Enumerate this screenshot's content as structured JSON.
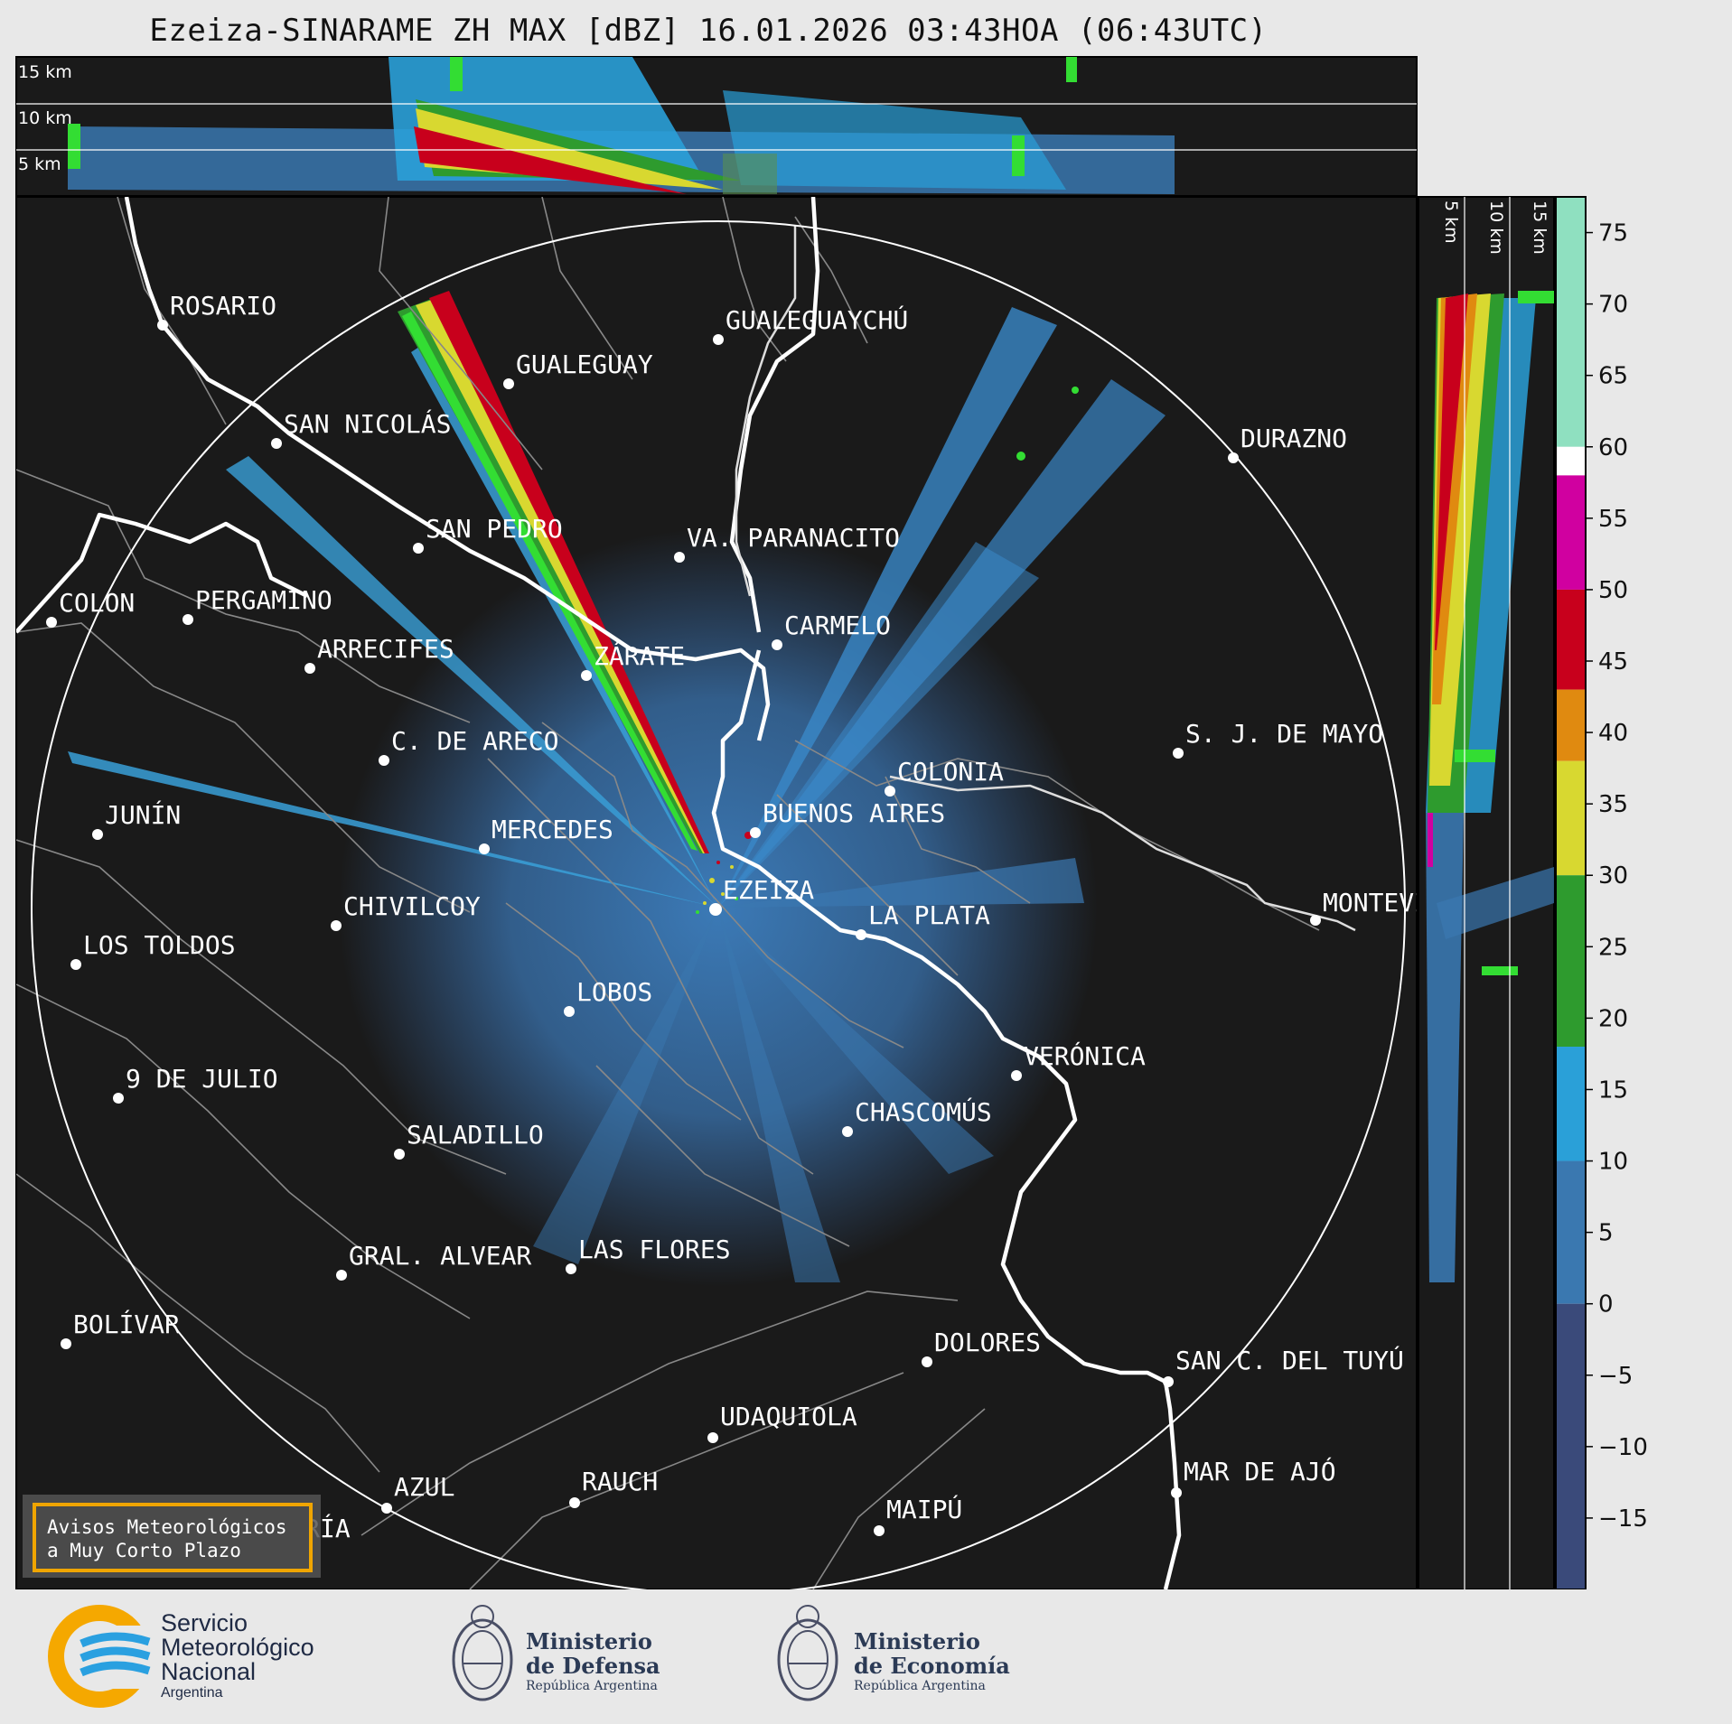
{
  "title": "Ezeiza-SINARAME ZH MAX [dBZ] 16.01.2026 03:43HOA (06:43UTC)",
  "top_panel": {
    "height_labels": [
      "15 km",
      "10 km",
      "5 km"
    ]
  },
  "side_panel": {
    "height_labels": [
      "5 km",
      "10 km",
      "15 km"
    ]
  },
  "colorbar": {
    "ticks": [
      "75",
      "70",
      "65",
      "60",
      "55",
      "50",
      "45",
      "40",
      "35",
      "30",
      "25",
      "20",
      "15",
      "10",
      "5",
      "0",
      "−5",
      "−10",
      "−15"
    ],
    "unit": "dBZ",
    "range": [
      -20,
      77.5
    ],
    "stops": [
      {
        "from": 60,
        "to": 77.5,
        "color": "#8fe0c0"
      },
      {
        "from": 58,
        "to": 60,
        "color": "#ffffff"
      },
      {
        "from": 50,
        "to": 58,
        "color": "#d000a0"
      },
      {
        "from": 43,
        "to": 50,
        "color": "#c8001c"
      },
      {
        "from": 38,
        "to": 43,
        "color": "#e08a10"
      },
      {
        "from": 30,
        "to": 38,
        "color": "#d8d830"
      },
      {
        "from": 18,
        "to": 30,
        "color": "#2e9b2e"
      },
      {
        "from": 10,
        "to": 18,
        "color": "#2aa0d8"
      },
      {
        "from": 0,
        "to": 10,
        "color": "#3a78b0"
      },
      {
        "from": -20,
        "to": 0,
        "color": "#3a4a7a"
      }
    ]
  },
  "cities": [
    {
      "name": "ROSARIO",
      "icon": "city-dot"
    },
    {
      "name": "GUALEGUAYCHÚ",
      "icon": "city-dot"
    },
    {
      "name": "GUALEGUAY",
      "icon": "city-dot"
    },
    {
      "name": "SAN NICOLÁS",
      "icon": "city-dot"
    },
    {
      "name": "DURAZNO",
      "icon": "city-dot"
    },
    {
      "name": "SAN PEDRO",
      "icon": "city-dot"
    },
    {
      "name": "VA. PARANACITO",
      "icon": "city-dot"
    },
    {
      "name": "COLON",
      "icon": "city-dot"
    },
    {
      "name": "PERGAMINO",
      "icon": "city-dot"
    },
    {
      "name": "CARMELO",
      "icon": "city-dot"
    },
    {
      "name": "ARRECIFES",
      "icon": "city-dot"
    },
    {
      "name": "ZÁRATE",
      "icon": "city-dot"
    },
    {
      "name": "S. J. DE MAYO",
      "icon": "city-dot"
    },
    {
      "name": "C. DE ARECO",
      "icon": "city-dot"
    },
    {
      "name": "COLONIA",
      "icon": "city-dot"
    },
    {
      "name": "JUNÍN",
      "icon": "city-dot"
    },
    {
      "name": "BUENOS AIRES",
      "icon": "city-dot"
    },
    {
      "name": "MERCEDES",
      "icon": "city-dot"
    },
    {
      "name": "EZEIZA",
      "icon": "radar-site-dot"
    },
    {
      "name": "MONTEVIDEO",
      "icon": "city-dot"
    },
    {
      "name": "CHIVILCOY",
      "icon": "city-dot"
    },
    {
      "name": "LA PLATA",
      "icon": "city-dot"
    },
    {
      "name": "LOS TOLDOS",
      "icon": "city-dot"
    },
    {
      "name": "LOBOS",
      "icon": "city-dot"
    },
    {
      "name": "VERÓNICA",
      "icon": "city-dot"
    },
    {
      "name": "9 DE JULIO",
      "icon": "city-dot"
    },
    {
      "name": "CHASCOMÚS",
      "icon": "city-dot"
    },
    {
      "name": "SALADILLO",
      "icon": "city-dot"
    },
    {
      "name": "GRAL. ALVEAR",
      "icon": "city-dot"
    },
    {
      "name": "LAS FLORES",
      "icon": "city-dot"
    },
    {
      "name": "BOLÍVAR",
      "icon": "city-dot"
    },
    {
      "name": "DOLORES",
      "icon": "city-dot"
    },
    {
      "name": "SAN C. DEL TUYÚ",
      "icon": "city-dot"
    },
    {
      "name": "UDAQUIOLA",
      "icon": "city-dot"
    },
    {
      "name": "MAR DE AJÓ",
      "icon": "city-dot"
    },
    {
      "name": "AZUL",
      "icon": "city-dot"
    },
    {
      "name": "RAUCH",
      "icon": "city-dot"
    },
    {
      "name": "OLAVARRÍA",
      "icon": "city-dot"
    },
    {
      "name": "MAIPÚ",
      "icon": "city-dot"
    }
  ],
  "alert_box": {
    "line1": "Avisos Meteorológicos",
    "line2": "a Muy Corto Plazo",
    "border_color": "#f0a500"
  },
  "logos": {
    "smn": {
      "line1": "Servicio",
      "line2": "Meteorológico",
      "line3": "Nacional",
      "line4": "Argentina"
    },
    "defensa": {
      "line1": "Ministerio",
      "line2": "de Defensa",
      "line3": "República Argentina"
    },
    "economia": {
      "line1": "Ministerio",
      "line2": "de Economía",
      "line3": "República Argentina"
    }
  }
}
